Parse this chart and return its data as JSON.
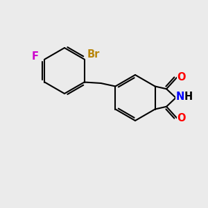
{
  "background_color": "#ebebeb",
  "bond_color": "#000000",
  "bond_lw": 1.5,
  "atom_labels": {
    "Br": {
      "color": "#b8860b",
      "fontsize": 11,
      "fontweight": "bold"
    },
    "F": {
      "color": "#cc00cc",
      "fontsize": 11,
      "fontweight": "bold"
    },
    "N": {
      "color": "#0000ff",
      "fontsize": 11,
      "fontweight": "bold"
    },
    "O_top": {
      "color": "#ff0000",
      "fontsize": 11,
      "fontweight": "bold"
    },
    "O_bot": {
      "color": "#ff0000",
      "fontsize": 11,
      "fontweight": "bold"
    },
    "H": {
      "color": "#000000",
      "fontsize": 11,
      "fontweight": "bold"
    }
  },
  "xlim": [
    0,
    10
  ],
  "ylim": [
    0,
    10
  ]
}
